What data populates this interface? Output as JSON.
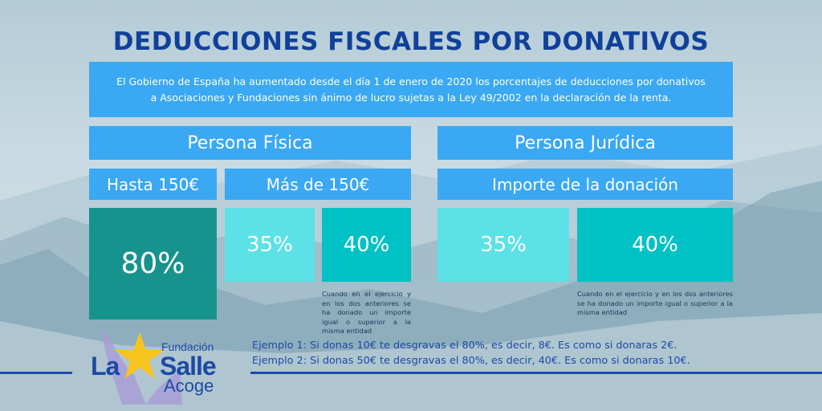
{
  "title": "DEDUCCIONES FISCALES POR DONATIVOS",
  "intro": "El Gobierno de España ha aumentado desde el día 1 de enero de 2020 los porcentajes de deducciones por donativos a Asociaciones y Fundaciones sin ánimo de lucro sujetas a la Ley 49/2002 en la declaración de la renta.",
  "persona_fisica": {
    "header": "Persona Física",
    "hasta_label": "Hasta 150€",
    "mas_label": "Más de 150€",
    "hasta_value": "80%",
    "mas_value_1": "35%",
    "mas_value_2": "40%",
    "note": "Cuando en el ejercicio y en los dos anteriores se ha donado un importe igual o superior a la misma entidad"
  },
  "persona_juridica": {
    "header": "Persona Jurídica",
    "importe_label": "Importe de la donación",
    "value_1": "35%",
    "value_2": "40%",
    "note": "Cuando en el ejercicio y en los dos anteriores se ha donado un importe igual o superior a la misma entidad"
  },
  "examples": [
    "Ejemplo 1: Si donas 10€ te desgravas el 80%, es decir, 8€. Es como si donaras 2€.",
    "Ejemplo 2: Si donas 50€ te desgravas el 80%, es decir, 40€. Es como si donaras 10€."
  ],
  "logo": {
    "fundacion": "Fundación",
    "la": "La",
    "salle": "Salle",
    "acoge": "Acoge"
  },
  "colors": {
    "title": "#10419a",
    "header_blue": "#3aa8f3",
    "dark_teal": "#17938d",
    "light_cyan": "#5ce1e6",
    "teal": "#00c1c4",
    "logo_blue": "#1c4aa5",
    "star_yellow": "#f7c31f"
  }
}
